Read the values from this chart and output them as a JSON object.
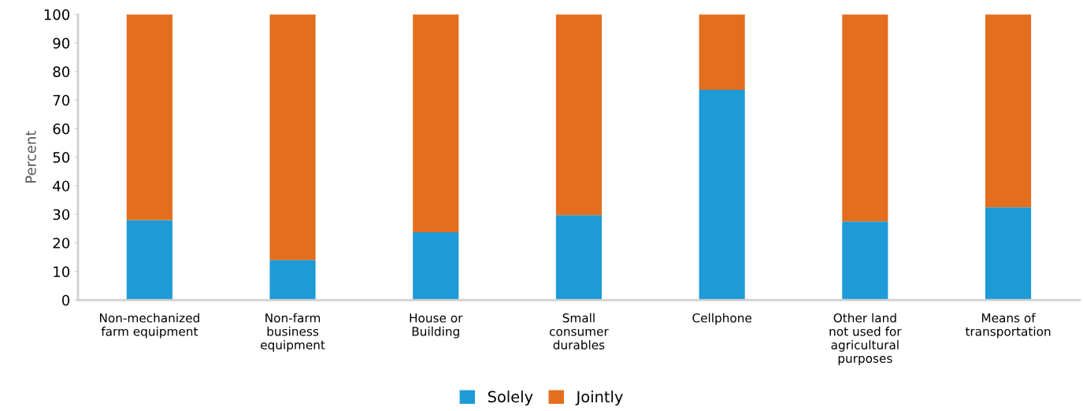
{
  "chart_data": {
    "type": "bar",
    "stacked": true,
    "ylabel": "Percent",
    "categories": [
      "Non-mechanized\nfarm equipment",
      "Non-farm\nbusiness\nequipment",
      "House or\nBuilding",
      "Small\nconsumer\ndurables",
      "Cellphone",
      "Other land\nnot used for\nagricultural\npurposes",
      "Means of\ntransportation"
    ],
    "series": [
      {
        "name": "Solely",
        "color": "#1e9ad6",
        "values": [
          28,
          14,
          23.7,
          29.7,
          73.6,
          27.5,
          32.5
        ]
      },
      {
        "name": "Jointly",
        "color": "#e36e1e",
        "values": [
          72,
          86,
          76.3,
          70.3,
          26.4,
          72.5,
          67.5
        ]
      }
    ],
    "ylim": [
      0,
      100
    ],
    "yticks": [
      0,
      10,
      20,
      30,
      40,
      50,
      60,
      70,
      80,
      90,
      100
    ],
    "grid": false,
    "legend": "bottom"
  }
}
